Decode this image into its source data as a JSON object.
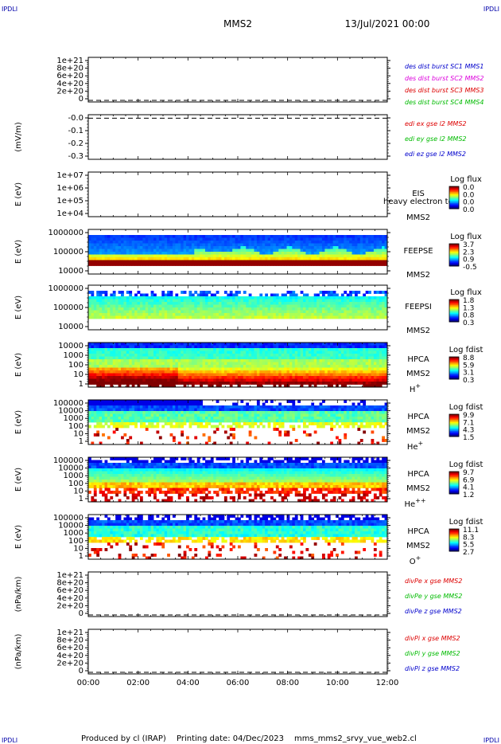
{
  "corner_label": "IPDLI",
  "header": {
    "title": "MMS2",
    "datetime": "13/Jul/2021 00:00"
  },
  "footer": {
    "produced_by": "Produced by cl (IRAP)",
    "printing_date": "Printing date: 04/Dec/2023",
    "filename": "mms_mms2_srvy_vue_web2.cl"
  },
  "x_ticks": [
    "00:00",
    "02:00",
    "04:00",
    "06:00",
    "08:00",
    "10:00",
    "12:00"
  ],
  "chart_data": [
    {
      "type": "line",
      "ylabel": "",
      "ylim": [
        0,
        1.2e+21
      ],
      "tick_labels": [
        "1e+21",
        "8e+20",
        "6e+20",
        "4e+20",
        "2e+20",
        "0"
      ],
      "grid": false,
      "legend_position": "right",
      "series": [
        {
          "name": "des dist burst SC1 MMS1",
          "color": "#0000cc",
          "values": [
            0,
            0
          ]
        },
        {
          "name": "des dist burst SC2 MMS2",
          "color": "#dd00dd",
          "values": [
            0,
            0
          ]
        },
        {
          "name": "des dist burst SC3 MMS3",
          "color": "#dd0000",
          "values": [
            0,
            0
          ]
        },
        {
          "name": "des dist burst SC4 MMS4",
          "color": "#00bb00",
          "values": [
            0,
            0
          ]
        }
      ]
    },
    {
      "type": "line",
      "ylabel": "(mV/m)",
      "ylim": [
        -0.35,
        0.03
      ],
      "tick_labels": [
        "-0.0",
        "-0.1",
        "-0.2",
        "-0.3"
      ],
      "grid": false,
      "legend_position": "right",
      "series": [
        {
          "name": "edi ex gse l2 MMS2",
          "color": "#dd0000",
          "values": [
            0,
            0
          ]
        },
        {
          "name": "edi ey gse l2 MMS2",
          "color": "#00bb00",
          "values": [
            0,
            0
          ]
        },
        {
          "name": "edi ez gse l2 MMS2",
          "color": "#0000cc",
          "values": [
            0,
            0
          ]
        }
      ]
    },
    {
      "type": "heatmap",
      "ylabel": "E (eV)",
      "yscale": "log",
      "ylim": [
        10000.0,
        10000000.0
      ],
      "tick_labels": [
        "1e+07",
        "1e+06",
        "1e+05",
        "1e+04"
      ],
      "instrument": "EIS",
      "overlay_text": "heavy electron to",
      "spacecraft": "MMS2",
      "colorbar": {
        "title": "Log flux",
        "ticks": [
          "0.0",
          "0.0",
          "0.0",
          "0.0"
        ]
      },
      "pattern": "empty"
    },
    {
      "type": "heatmap",
      "ylabel": "E (eV)",
      "yscale": "log",
      "ylim": [
        10000,
        1000000
      ],
      "tick_labels": [
        "1000000",
        "100000",
        "10000"
      ],
      "instrument": "FEEPSE",
      "spacecraft": "MMS2",
      "colorbar": {
        "title": "Log flux",
        "ticks": [
          "3.7",
          "2.3",
          "0.9",
          "-0.5"
        ]
      },
      "pattern": "feepse"
    },
    {
      "type": "heatmap",
      "ylabel": "E (eV)",
      "yscale": "log",
      "ylim": [
        10000,
        1000000
      ],
      "tick_labels": [
        "1000000",
        "100000",
        "10000"
      ],
      "instrument": "FEEPSI",
      "spacecraft": "MMS2",
      "colorbar": {
        "title": "Log flux",
        "ticks": [
          "1.8",
          "1.3",
          "0.8",
          "0.3"
        ]
      },
      "pattern": "feepsi"
    },
    {
      "type": "heatmap",
      "ylabel": "E (eV)",
      "yscale": "log",
      "ylim": [
        1,
        10000
      ],
      "tick_labels": [
        "10000",
        "1000",
        "100",
        "10",
        "1"
      ],
      "instrument": "HPCA",
      "spacecraft": "MMS2",
      "species": "H",
      "species_charge": "+",
      "colorbar": {
        "title": "Log fdist",
        "ticks": [
          "8.8",
          "5.9",
          "3.1",
          "0.3"
        ]
      },
      "pattern": "hplus"
    },
    {
      "type": "heatmap",
      "ylabel": "E (eV)",
      "yscale": "log",
      "ylim": [
        1,
        100000
      ],
      "tick_labels": [
        "100000",
        "10000",
        "1000",
        "100",
        "10",
        "1"
      ],
      "instrument": "HPCA",
      "spacecraft": "MMS2",
      "species": "He",
      "species_charge": "+",
      "colorbar": {
        "title": "Log fdist",
        "ticks": [
          "9.9",
          "7.1",
          "4.3",
          "1.5"
        ]
      },
      "pattern": "heplus"
    },
    {
      "type": "heatmap",
      "ylabel": "E (eV)",
      "yscale": "log",
      "ylim": [
        1,
        100000
      ],
      "tick_labels": [
        "100000",
        "10000",
        "1000",
        "100",
        "10",
        "1"
      ],
      "instrument": "HPCA",
      "spacecraft": "MMS2",
      "species": "He",
      "species_charge": "++",
      "colorbar": {
        "title": "Log fdist",
        "ticks": [
          "9.7",
          "6.9",
          "4.1",
          "1.2"
        ]
      },
      "pattern": "heplusplus"
    },
    {
      "type": "heatmap",
      "ylabel": "E (eV)",
      "yscale": "log",
      "ylim": [
        1,
        100000
      ],
      "tick_labels": [
        "100000",
        "10000",
        "1000",
        "100",
        "10",
        "1"
      ],
      "instrument": "HPCA",
      "spacecraft": "MMS2",
      "species": "O",
      "species_charge": "+",
      "colorbar": {
        "title": "Log fdist",
        "ticks": [
          "11.1",
          "8.3",
          "5.5",
          "2.7"
        ]
      },
      "pattern": "oplus"
    },
    {
      "type": "line",
      "ylabel": "(nPa/km)",
      "ylim": [
        0,
        1.2e+21
      ],
      "tick_labels": [
        "1e+21",
        "8e+20",
        "6e+20",
        "4e+20",
        "2e+20",
        "0"
      ],
      "grid": false,
      "legend_position": "right",
      "series": [
        {
          "name": "divPe x gse MMS2",
          "color": "#dd0000",
          "values": [
            0,
            0
          ]
        },
        {
          "name": "divPe y gse MMS2",
          "color": "#00bb00",
          "values": [
            0,
            0
          ]
        },
        {
          "name": "divPe z gse MMS2",
          "color": "#0000cc",
          "values": [
            0,
            0
          ]
        }
      ]
    },
    {
      "type": "line",
      "ylabel": "(nPa/km)",
      "ylim": [
        0,
        1.2e+21
      ],
      "tick_labels": [
        "1e+21",
        "8e+20",
        "6e+20",
        "4e+20",
        "2e+20",
        "0"
      ],
      "grid": false,
      "legend_position": "right",
      "series": [
        {
          "name": "divPi x gse MMS2",
          "color": "#dd0000",
          "values": [
            0,
            0
          ]
        },
        {
          "name": "divPi y gse MMS2",
          "color": "#00bb00",
          "values": [
            0,
            0
          ]
        },
        {
          "name": "divPi z gse MMS2",
          "color": "#0000cc",
          "values": [
            0,
            0
          ]
        }
      ]
    }
  ]
}
